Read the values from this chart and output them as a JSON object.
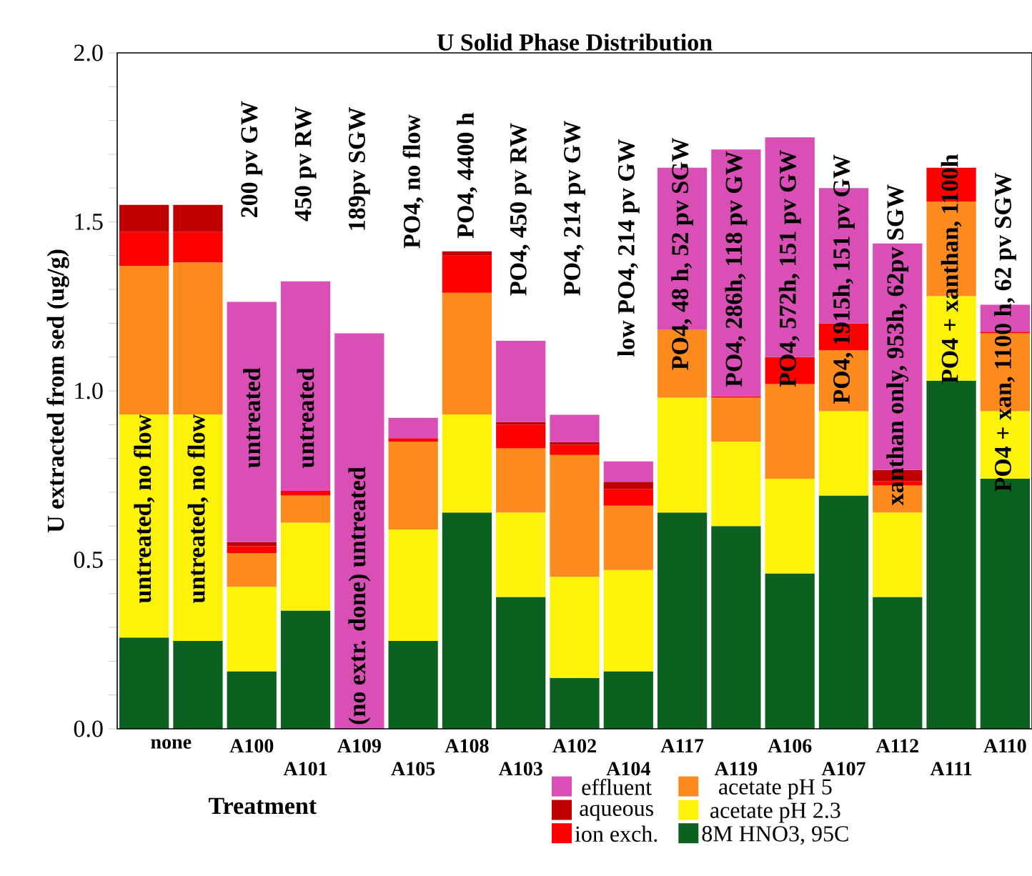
{
  "chart_data": {
    "type": "bar",
    "stacked": true,
    "title": "U Solid Phase Distribution",
    "xlabel": "Treatment",
    "ylabel": "U extracted from sed (ug/g)",
    "categories": [
      "none",
      null,
      "A100",
      "A101",
      "A109",
      "A105",
      "A108",
      "A103",
      "A102",
      "A104",
      "A117",
      "A119",
      "A106",
      "A107",
      "A112",
      "A111",
      "A110"
    ],
    "series": [
      {
        "name": "8M HNO3, 95C",
        "color": "#0d6120",
        "values": [
          0.27,
          0.26,
          0.17,
          0.35,
          null,
          0.26,
          0.64,
          0.39,
          0.15,
          0.17,
          0.64,
          0.6,
          0.46,
          0.69,
          0.39,
          1.03,
          0.74
        ]
      },
      {
        "name": "acetate pH 2.3",
        "color": "#fcf20a",
        "values": [
          0.66,
          0.67,
          0.25,
          0.26,
          null,
          0.33,
          0.29,
          0.25,
          0.3,
          0.3,
          0.34,
          0.25,
          0.28,
          0.25,
          0.25,
          0.25,
          0.2
        ]
      },
      {
        "name": "acetate pH 5",
        "color": "#fd8a1c",
        "values": [
          0.44,
          0.45,
          0.1,
          0.08,
          null,
          0.26,
          0.36,
          0.19,
          0.36,
          0.19,
          0.2,
          0.13,
          0.28,
          0.18,
          0.08,
          0.28,
          0.23
        ]
      },
      {
        "name": "ion exch.",
        "color": "#ff0000",
        "values": [
          0.1,
          0.09,
          0.02,
          0.014,
          null,
          0.01,
          0.11,
          0.07,
          0.03,
          0.05,
          null,
          0.004,
          0.08,
          0.08,
          0.012,
          0.1,
          0.005
        ]
      },
      {
        "name": "aqueous",
        "color": "#c00000",
        "values": [
          0.08,
          0.08,
          0.013,
          null,
          null,
          null,
          0.013,
          0.008,
          0.009,
          0.021,
          null,
          null,
          null,
          null,
          0.034,
          null,
          null
        ]
      },
      {
        "name": "effluent",
        "color": "#d94fb5",
        "values": [
          null,
          null,
          0.71,
          0.62,
          1.17,
          0.06,
          null,
          0.24,
          0.08,
          0.06,
          0.48,
          0.73,
          0.65,
          0.4,
          0.67,
          null,
          0.08
        ]
      }
    ],
    "ylim": [
      0,
      2.0
    ],
    "yticks": [
      {
        "value": 0,
        "label": "0.0"
      },
      {
        "value": 0.1,
        "label": null
      },
      {
        "value": 0.2,
        "label": null
      },
      {
        "value": 0.3,
        "label": null
      },
      {
        "value": 0.4,
        "label": null
      },
      {
        "value": 0.5,
        "label": "0.5"
      },
      {
        "value": 0.6,
        "label": null
      },
      {
        "value": 0.7,
        "label": null
      },
      {
        "value": 0.8,
        "label": null
      },
      {
        "value": 0.9,
        "label": null
      },
      {
        "value": 1.0,
        "label": "1.0"
      },
      {
        "value": 1.1,
        "label": null
      },
      {
        "value": 1.2,
        "label": null
      },
      {
        "value": 1.3,
        "label": null
      },
      {
        "value": 1.4,
        "label": null
      },
      {
        "value": 1.5,
        "label": "1.5"
      },
      {
        "value": 1.6,
        "label": null
      },
      {
        "value": 1.7,
        "label": null
      },
      {
        "value": 1.8,
        "label": null
      },
      {
        "value": 1.9,
        "label": null
      },
      {
        "value": 2.0,
        "label": "2.0"
      }
    ],
    "legend": "bottom",
    "annotations": [
      "untreated, no flow",
      "untreated, no flow",
      "untreated",
      "200 pv GW",
      "untreated",
      "450 pv RW",
      "(no extr. done) untreated",
      "189pv SGW",
      "PO4, no flow",
      "PO4, 4400 h",
      "PO4, 450 pv RW",
      "PO4, 214 pv GW",
      "low PO4, 214 pv GW",
      "PO4, 48 h, 52 pv SGW",
      "PO4, 286h, 118 pv GW",
      "PO4, 572h, 151 pv GW",
      "PO4, 1915h, 151 pv GW",
      "xanthan only, 953h, 62pv SGW",
      "PO4 + xanthan, 1100h",
      "PO4 + xan, 1100 h, 62 pv SGW"
    ]
  }
}
